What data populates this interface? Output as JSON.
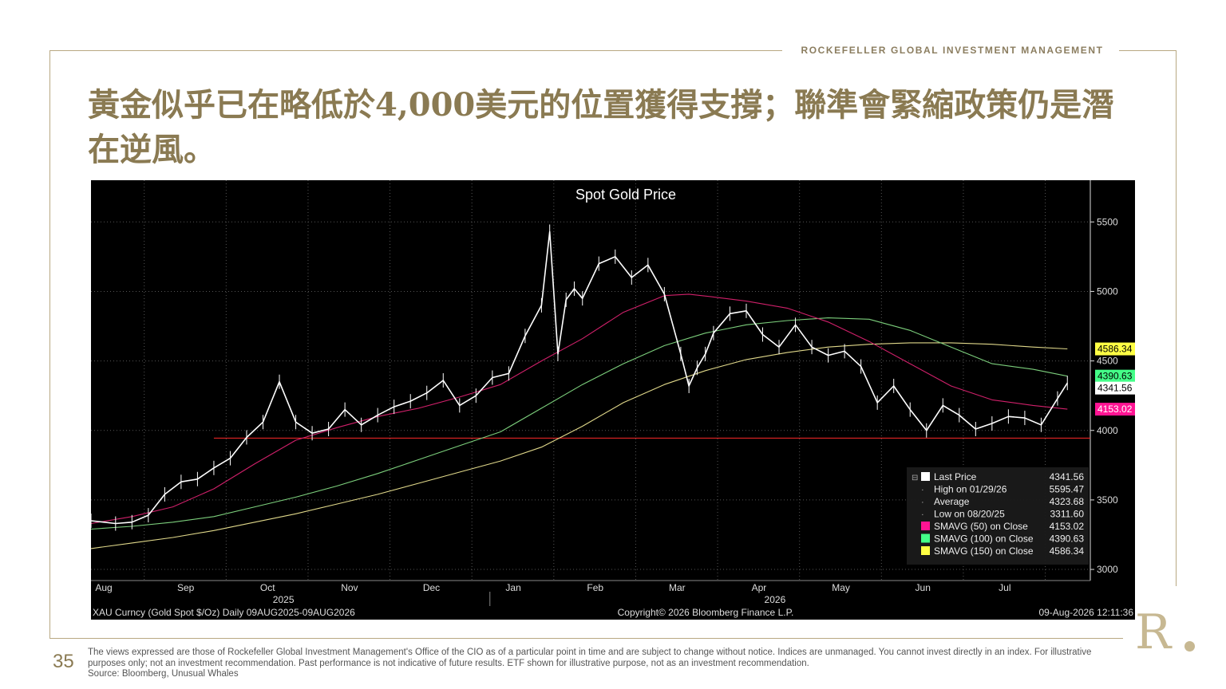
{
  "header": {
    "brand": "ROCKEFELLER GLOBAL INVESTMENT MANAGEMENT"
  },
  "slide": {
    "title": "黃金似乎已在略低於4,000美元的位置獲得支撐；聯準會緊縮政策仍是潛在逆風。",
    "page_number": "35",
    "disclaimer": "The views expressed are those of Rockefeller Global Investment Management's Office of the CIO as of a particular point in time and are subject to change without notice. Indices are unmanaged. You cannot invest directly in an index. For illustrative purposes only; not an investment recommendation. Past performance is not indicative of future results. ETF shown for illustrative purpose, not as an investment recommendation.",
    "source": "Source: Bloomberg, Unusual Whales",
    "logo_text": "R"
  },
  "chart_data": {
    "type": "line",
    "title": "Spot Gold Price",
    "footer_left": "XAU Curncy (Gold Spot  $/Oz) Daily 09AUG2025-09AUG2026",
    "footer_center": "Copyright© 2026 Bloomberg Finance L.P.",
    "footer_right": "09-Aug-2026 12:11:36",
    "months": [
      "Aug",
      "Sep",
      "Oct",
      "Nov",
      "Dec",
      "Jan",
      "Feb",
      "Mar",
      "Apr",
      "May",
      "Jun",
      "Jul"
    ],
    "years": [
      "2025",
      "2026"
    ],
    "ylim": [
      2920,
      5800
    ],
    "yticks": [
      3000,
      3500,
      4000,
      4500,
      5000,
      5500
    ],
    "xlim": [
      0,
      12.2
    ],
    "support_level": 3945,
    "series": [
      {
        "name": "Last Price",
        "color": "#ffffff",
        "x": [
          0,
          0.3,
          0.5,
          0.7,
          0.9,
          1.1,
          1.3,
          1.5,
          1.7,
          1.9,
          2.1,
          2.3,
          2.5,
          2.7,
          2.9,
          3.1,
          3.3,
          3.5,
          3.7,
          3.9,
          4.1,
          4.3,
          4.5,
          4.7,
          4.9,
          5.1,
          5.3,
          5.5,
          5.6,
          5.7,
          5.8,
          5.9,
          6.0,
          6.2,
          6.4,
          6.6,
          6.8,
          7.0,
          7.2,
          7.3,
          7.4,
          7.5,
          7.6,
          7.8,
          8.0,
          8.2,
          8.4,
          8.6,
          8.8,
          9.0,
          9.2,
          9.4,
          9.6,
          9.8,
          10.0,
          10.2,
          10.4,
          10.6,
          10.8,
          11.0,
          11.2,
          11.4,
          11.6,
          11.8,
          11.92
        ],
        "y": [
          3350,
          3330,
          3340,
          3390,
          3540,
          3630,
          3650,
          3730,
          3800,
          3950,
          4060,
          4350,
          4060,
          3980,
          4010,
          4150,
          4040,
          4110,
          4170,
          4210,
          4270,
          4360,
          4180,
          4250,
          4380,
          4410,
          4680,
          4900,
          5430,
          4550,
          4940,
          5020,
          4950,
          5200,
          5250,
          5100,
          5190,
          4980,
          4550,
          4320,
          4450,
          4550,
          4700,
          4840,
          4860,
          4690,
          4600,
          4760,
          4600,
          4540,
          4570,
          4460,
          4200,
          4320,
          4150,
          4000,
          4180,
          4110,
          4010,
          4050,
          4100,
          4090,
          4040,
          4230,
          4341.56
        ]
      },
      {
        "name": "SMAVG (50) on Close",
        "color": "#d0206a",
        "x": [
          0,
          0.5,
          1,
          1.5,
          2,
          2.5,
          3,
          3.5,
          4,
          4.5,
          5,
          5.5,
          6,
          6.5,
          7,
          7.3,
          7.6,
          8,
          8.5,
          9,
          9.5,
          10,
          10.5,
          11,
          11.5,
          11.92
        ],
        "y": [
          3330,
          3380,
          3450,
          3580,
          3760,
          3930,
          4020,
          4100,
          4160,
          4240,
          4330,
          4500,
          4660,
          4850,
          4970,
          4980,
          4960,
          4930,
          4880,
          4780,
          4640,
          4480,
          4320,
          4220,
          4180,
          4153.02
        ]
      },
      {
        "name": "SMAVG (100) on Close",
        "color": "#7ccf7c",
        "x": [
          0,
          0.5,
          1,
          1.5,
          2,
          2.5,
          3,
          3.5,
          4,
          4.5,
          5,
          5.5,
          6,
          6.5,
          7,
          7.5,
          8,
          8.5,
          9,
          9.5,
          10,
          10.5,
          11,
          11.5,
          11.92
        ],
        "y": [
          3290,
          3310,
          3340,
          3380,
          3450,
          3520,
          3600,
          3690,
          3790,
          3890,
          3990,
          4160,
          4330,
          4480,
          4610,
          4700,
          4760,
          4790,
          4810,
          4800,
          4720,
          4600,
          4480,
          4440,
          4390.63
        ]
      },
      {
        "name": "SMAVG (150) on Close",
        "color": "#e0d88a",
        "x": [
          0,
          0.5,
          1,
          1.5,
          2,
          2.5,
          3,
          3.5,
          4,
          4.5,
          5,
          5.5,
          6,
          6.5,
          7,
          7.5,
          8,
          8.5,
          9,
          9.5,
          10,
          10.5,
          11,
          11.5,
          11.92
        ],
        "y": [
          3150,
          3190,
          3230,
          3280,
          3340,
          3400,
          3470,
          3540,
          3620,
          3700,
          3780,
          3880,
          4030,
          4200,
          4330,
          4430,
          4510,
          4560,
          4600,
          4620,
          4630,
          4630,
          4620,
          4600,
          4586.34
        ]
      }
    ],
    "right_labels": [
      {
        "value": "4586.34",
        "y": 4586.34,
        "bg": "#ffff44",
        "fg": "#000000"
      },
      {
        "value": "4390.63",
        "y": 4390.63,
        "bg": "#44ff88",
        "fg": "#000000"
      },
      {
        "value": "4341.56",
        "y": 4341.56,
        "bg": "#ffffff",
        "fg": "#000000"
      },
      {
        "value": "4153.02",
        "y": 4153.02,
        "bg": "#ff1493",
        "fg": "#ffffff"
      }
    ],
    "legend": [
      {
        "label": "Last Price",
        "value": "4341.56",
        "color": "#ffffff"
      },
      {
        "label": "High on 01/29/26",
        "value": "5595.47",
        "color": ""
      },
      {
        "label": "Average",
        "value": "4323.68",
        "color": ""
      },
      {
        "label": "Low on 08/20/25",
        "value": "3311.60",
        "color": ""
      },
      {
        "label": "SMAVG (50)  on Close",
        "value": "4153.02",
        "color": "#ff1493"
      },
      {
        "label": "SMAVG (100)  on Close",
        "value": "4390.63",
        "color": "#44ff88"
      },
      {
        "label": "SMAVG (150)  on Close",
        "value": "4586.34",
        "color": "#ffff44"
      }
    ]
  }
}
